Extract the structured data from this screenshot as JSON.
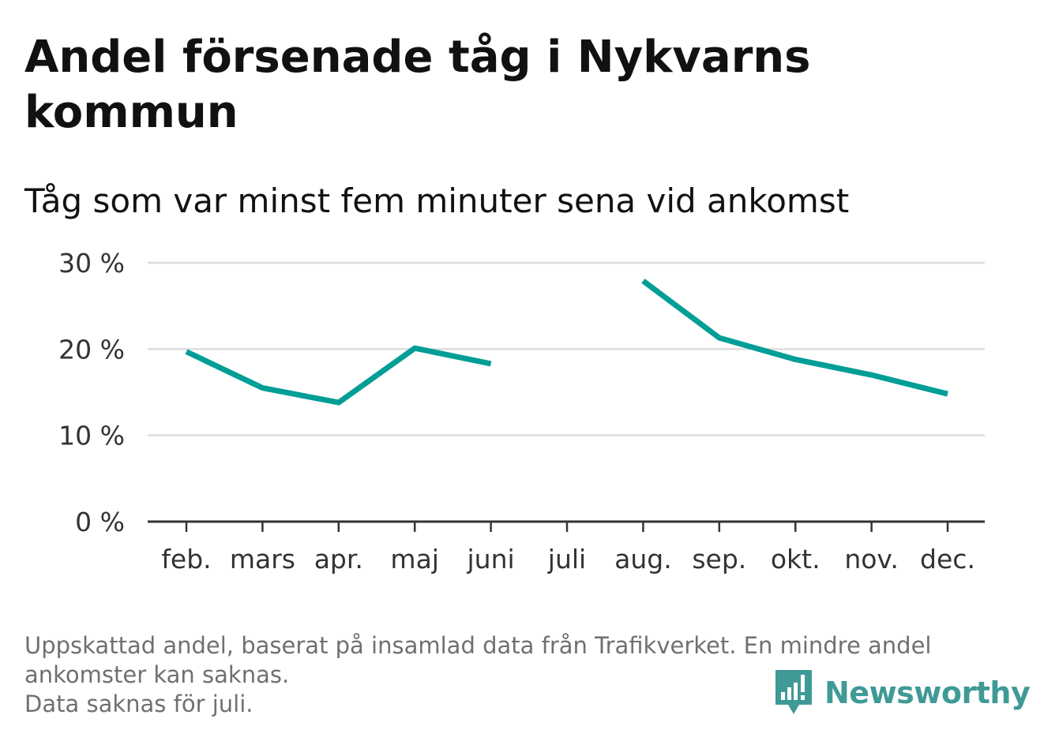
{
  "title": "Andel försenade tåg i Nykvarns kommun",
  "subtitle": "Tåg som var minst fem minuter sena vid ankomst",
  "footnote": {
    "line1": "Uppskattad andel, baserat på insamlad data från Trafikverket. En mindre andel",
    "line2": "ankomster kan saknas.",
    "line3": "Data saknas för juli."
  },
  "logo": {
    "text": "Newsworthy",
    "icon": "newsworthy-logo-icon",
    "color": "#3f9a96"
  },
  "chart_data": {
    "type": "line",
    "categories": [
      "feb.",
      "mars",
      "apr.",
      "maj",
      "juni",
      "juli",
      "aug.",
      "sep.",
      "okt.",
      "nov.",
      "dec."
    ],
    "series": [
      {
        "values": [
          19.7,
          15.5,
          13.8,
          20.1,
          18.3,
          null,
          27.9,
          21.3,
          18.8,
          17.0,
          14.8
        ],
        "color": "#009e96"
      }
    ],
    "yticks": [
      0,
      10,
      20,
      30
    ],
    "ytick_labels": [
      "0 %",
      "10 %",
      "20 %",
      "30 %"
    ],
    "ylim": [
      0,
      30
    ],
    "grid": true,
    "legend": "none",
    "gridline_color": "#dddddd",
    "axis_color": "#333333"
  }
}
